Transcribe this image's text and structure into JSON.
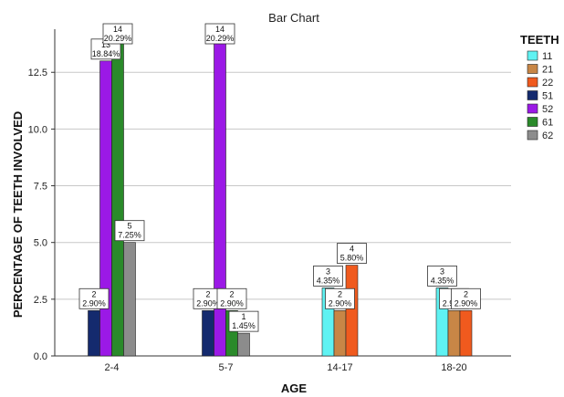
{
  "chart_data": {
    "type": "bar",
    "title": "Bar Chart",
    "xlabel": "AGE",
    "ylabel": "PERCENTAGE OF TEETH INVOLVED",
    "ylim": [
      0,
      14.4
    ],
    "yticks": [
      "0.0",
      "2.5",
      "5.0",
      "7.5",
      "10.0",
      "12.5"
    ],
    "grid": true,
    "legend_title": "TEETH",
    "legend_position": "right",
    "categories": [
      "2-4",
      "5-7",
      "14-17",
      "18-20"
    ],
    "series": [
      {
        "name": "11",
        "color": "#5ff2f2",
        "values": [
          null,
          null,
          3,
          3
        ]
      },
      {
        "name": "21",
        "color": "#c88646",
        "values": [
          null,
          null,
          2,
          2
        ]
      },
      {
        "name": "22",
        "color": "#f05a1e",
        "values": [
          null,
          null,
          4,
          2
        ]
      },
      {
        "name": "51",
        "color": "#142a6e",
        "values": [
          2,
          2,
          null,
          null
        ]
      },
      {
        "name": "52",
        "color": "#9b19e6",
        "values": [
          13,
          14,
          null,
          null
        ]
      },
      {
        "name": "61",
        "color": "#2a8a2a",
        "values": [
          14,
          2,
          null,
          null
        ]
      },
      {
        "name": "62",
        "color": "#8c8c8c",
        "values": [
          5,
          1,
          null,
          null
        ]
      }
    ],
    "data_labels": [
      {
        "category": "2-4",
        "series": "51",
        "count": "2",
        "percent": "2.90%"
      },
      {
        "category": "2-4",
        "series": "52",
        "count": "13",
        "percent": "18.84%"
      },
      {
        "category": "2-4",
        "series": "61",
        "count": "14",
        "percent": "20.29%"
      },
      {
        "category": "2-4",
        "series": "62",
        "count": "5",
        "percent": "7.25%"
      },
      {
        "category": "5-7",
        "series": "51",
        "count": "2",
        "percent": "2.90%"
      },
      {
        "category": "5-7",
        "series": "52",
        "count": "14",
        "percent": "20.29%"
      },
      {
        "category": "5-7",
        "series": "61",
        "count": "2",
        "percent": "2.90%"
      },
      {
        "category": "5-7",
        "series": "62",
        "count": "1",
        "percent": "1.45%"
      },
      {
        "category": "14-17",
        "series": "11",
        "count": "3",
        "percent": "4.35%"
      },
      {
        "category": "14-17",
        "series": "21",
        "count": "2",
        "percent": "2.90%"
      },
      {
        "category": "14-17",
        "series": "22",
        "count": "4",
        "percent": "5.80%"
      },
      {
        "category": "18-20",
        "series": "11",
        "count": "3",
        "percent": "4.35%"
      },
      {
        "category": "18-20",
        "series": "21",
        "count": "2",
        "percent": "2.90%"
      },
      {
        "category": "18-20",
        "series": "22",
        "count": "2",
        "percent": "2.90%"
      }
    ]
  }
}
